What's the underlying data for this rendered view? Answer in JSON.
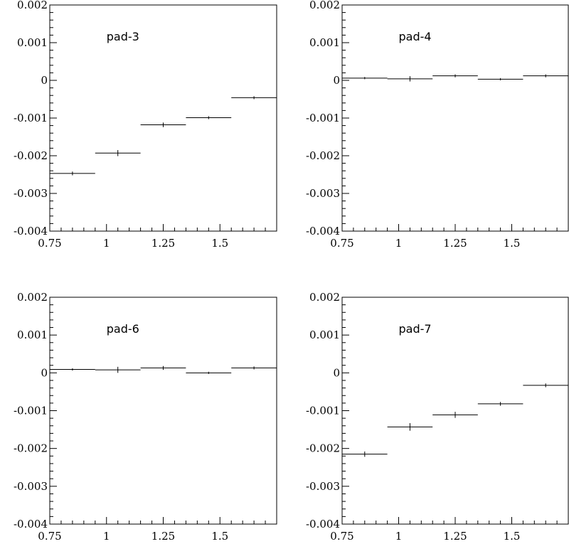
{
  "chart_data": [
    {
      "type": "scatter",
      "label": "pad-3",
      "x": [
        0.85,
        1.05,
        1.25,
        1.45,
        1.65
      ],
      "x_halfwidth": 0.1,
      "y": [
        -0.00247,
        -0.00193,
        -0.00118,
        -0.00099,
        -0.00046
      ],
      "yerr": [
        5e-05,
        8e-05,
        6e-05,
        4e-05,
        4e-05
      ],
      "xlim": [
        0.75,
        1.75
      ],
      "ylim": [
        -0.004,
        0.002
      ],
      "xticks": [
        "0.75",
        "1",
        "1.25",
        "1.5"
      ],
      "yticks": [
        "0.002",
        "0.001",
        "0",
        "-0.001",
        "-0.002",
        "-0.003",
        "-0.004"
      ]
    },
    {
      "type": "scatter",
      "label": "pad-4",
      "x": [
        0.85,
        1.05,
        1.25,
        1.45,
        1.65
      ],
      "x_halfwidth": 0.1,
      "y": [
        6e-05,
        4e-05,
        0.00012,
        3e-05,
        0.00012
      ],
      "yerr": [
        3e-05,
        7e-05,
        4e-05,
        3e-05,
        4e-05
      ],
      "xlim": [
        0.75,
        1.75
      ],
      "ylim": [
        -0.004,
        0.002
      ],
      "xticks": [
        "0.75",
        "1",
        "1.25",
        "1.5"
      ],
      "yticks": [
        "0.002",
        "0.001",
        "0",
        "-0.001",
        "-0.002",
        "-0.003",
        "-0.004"
      ]
    },
    {
      "type": "scatter",
      "label": "pad-6",
      "x": [
        0.85,
        1.05,
        1.25,
        1.45,
        1.65
      ],
      "x_halfwidth": 0.1,
      "y": [
        9e-05,
        8e-05,
        0.00013,
        0.0,
        0.00013
      ],
      "yerr": [
        3e-05,
        8e-05,
        5e-05,
        3e-05,
        4e-05
      ],
      "xlim": [
        0.75,
        1.75
      ],
      "ylim": [
        -0.004,
        0.002
      ],
      "xticks": [
        "0.75",
        "1",
        "1.25",
        "1.5"
      ],
      "yticks": [
        "0.002",
        "0.001",
        "0",
        "-0.001",
        "-0.002",
        "-0.003",
        "-0.004"
      ]
    },
    {
      "type": "scatter",
      "label": "pad-7",
      "x": [
        0.85,
        1.05,
        1.25,
        1.45,
        1.65
      ],
      "x_halfwidth": 0.1,
      "y": [
        -0.00215,
        -0.00143,
        -0.00111,
        -0.00082,
        -0.00033
      ],
      "yerr": [
        7e-05,
        0.0001,
        8e-05,
        5e-05,
        5e-05
      ],
      "xlim": [
        0.75,
        1.75
      ],
      "ylim": [
        -0.004,
        0.002
      ],
      "xticks": [
        "0.75",
        "1",
        "1.25",
        "1.5"
      ],
      "yticks": [
        "0.002",
        "0.001",
        "0",
        "-0.001",
        "-0.002",
        "-0.003",
        "-0.004"
      ]
    }
  ]
}
